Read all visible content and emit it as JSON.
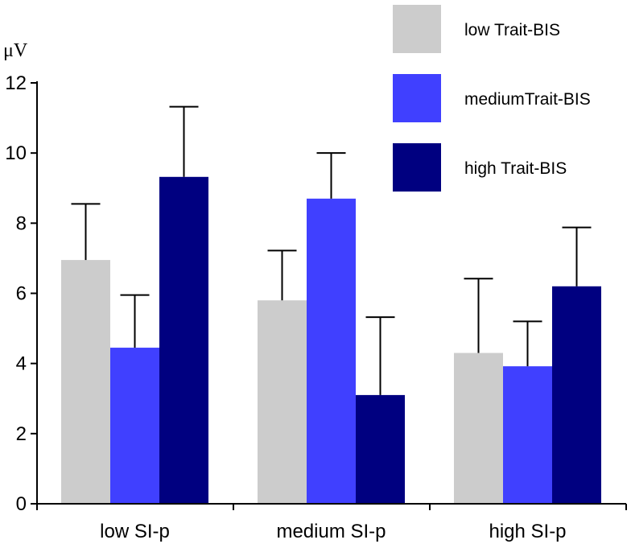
{
  "chart_data": {
    "type": "bar",
    "categories": [
      "low SI-p",
      "medium SI-p",
      "high SI-p"
    ],
    "series": [
      {
        "name": "low Trait-BIS",
        "values": [
          6.95,
          5.8,
          4.3
        ],
        "errors": [
          1.6,
          1.42,
          2.12
        ],
        "color": "#cccccc"
      },
      {
        "name": "mediumTrait-BIS",
        "values": [
          4.45,
          8.7,
          3.92
        ],
        "errors": [
          1.5,
          1.3,
          1.28
        ],
        "color": "#4040ff"
      },
      {
        "name": "high Trait-BIS",
        "values": [
          9.32,
          3.1,
          6.2
        ],
        "errors": [
          2.0,
          2.22,
          1.68
        ],
        "color": "#000080"
      }
    ],
    "ylabel": "μV",
    "ylim": [
      0,
      12
    ],
    "yticks": [
      "0",
      "2",
      "4",
      "6",
      "8",
      "10",
      "12"
    ],
    "legend_position": "top-right"
  }
}
